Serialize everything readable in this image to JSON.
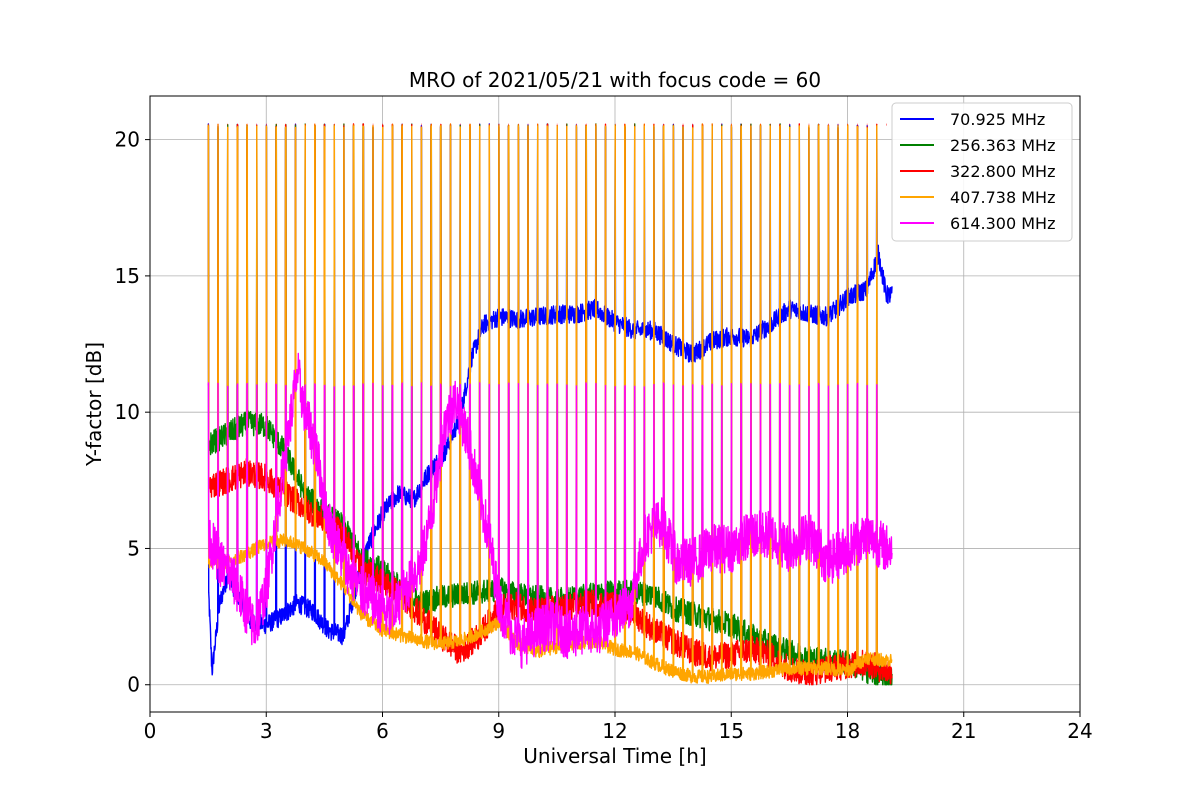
{
  "chart_data": {
    "type": "line",
    "title": "MRO of 2021/05/21 with focus code = 60",
    "xlabel": "Universal Time [h]",
    "ylabel": "Y-factor [dB]",
    "xlim": [
      0,
      24
    ],
    "ylim": [
      -1,
      21.6
    ],
    "xticks": [
      0,
      3,
      6,
      9,
      12,
      15,
      18,
      21,
      24
    ],
    "yticks": [
      0,
      5,
      10,
      15,
      20
    ],
    "grid": true,
    "legend_position": "top-right",
    "legend_labels": [
      " 70.925 MHz",
      "256.363 MHz",
      "322.800 MHz",
      "407.738 MHz",
      "614.300 MHz"
    ],
    "calibration_pulses": {
      "start_h": 1.5,
      "end_h": 19.0,
      "period_h": 0.25,
      "peak_db": 20.5,
      "magenta_peak_db": 11.0
    },
    "series": [
      {
        "name": " 70.925 MHz",
        "color": "#0000ff",
        "x": [
          1.5,
          1.6,
          1.8,
          2.0,
          2.3,
          2.6,
          3.0,
          3.4,
          3.8,
          4.2,
          4.6,
          5.0,
          5.3,
          5.6,
          6.0,
          6.4,
          6.8,
          7.2,
          7.6,
          8.0,
          8.3,
          8.6,
          9.0,
          9.5,
          10.0,
          10.5,
          11.0,
          11.5,
          12.0,
          12.5,
          13.0,
          13.5,
          14.0,
          14.5,
          15.0,
          15.5,
          16.0,
          16.5,
          17.0,
          17.5,
          18.0,
          18.5,
          18.8,
          19.0
        ],
        "y": [
          3.8,
          0.5,
          3.0,
          4.0,
          3.2,
          2.3,
          2.2,
          2.5,
          3.0,
          2.7,
          2.0,
          1.8,
          3.5,
          5.0,
          6.3,
          7.0,
          6.8,
          7.8,
          8.5,
          9.8,
          12.0,
          13.2,
          13.5,
          13.4,
          13.5,
          13.6,
          13.6,
          13.8,
          13.3,
          13.0,
          13.0,
          12.5,
          12.1,
          12.6,
          12.8,
          12.7,
          13.2,
          13.8,
          13.6,
          13.5,
          14.2,
          14.5,
          15.8,
          14.3
        ]
      },
      {
        "name": "256.363 MHz",
        "color": "#008000",
        "x": [
          1.5,
          2.0,
          2.5,
          3.0,
          3.5,
          4.0,
          4.5,
          5.0,
          5.5,
          6.0,
          6.5,
          7.0,
          7.5,
          8.0,
          8.5,
          9.0,
          9.5,
          10.0,
          10.5,
          11.0,
          11.5,
          12.0,
          12.5,
          13.0,
          13.5,
          14.0,
          14.5,
          15.0,
          15.5,
          16.0,
          16.5,
          17.0,
          17.5,
          18.0,
          18.5,
          19.0
        ],
        "y": [
          8.8,
          9.2,
          9.6,
          9.5,
          8.5,
          7.0,
          6.3,
          5.8,
          4.6,
          4.2,
          3.5,
          3.0,
          3.2,
          3.3,
          3.4,
          3.5,
          3.3,
          3.2,
          3.1,
          3.2,
          3.3,
          3.4,
          3.4,
          3.3,
          2.8,
          2.6,
          2.4,
          2.2,
          1.8,
          1.5,
          1.2,
          1.0,
          0.9,
          0.8,
          0.5,
          0.2
        ]
      },
      {
        "name": "322.800 MHz",
        "color": "#ff0000",
        "x": [
          1.5,
          2.0,
          2.5,
          3.0,
          3.5,
          4.0,
          4.5,
          5.0,
          5.5,
          6.0,
          6.5,
          7.0,
          7.5,
          8.0,
          8.5,
          9.0,
          9.5,
          10.0,
          10.5,
          11.0,
          11.5,
          12.0,
          12.5,
          13.0,
          13.5,
          14.0,
          14.5,
          15.0,
          15.5,
          16.0,
          16.5,
          17.0,
          17.5,
          18.0,
          18.5,
          19.0
        ],
        "y": [
          7.3,
          7.5,
          7.8,
          7.6,
          7.0,
          6.5,
          6.0,
          5.5,
          4.2,
          3.8,
          3.3,
          2.5,
          1.8,
          1.2,
          1.8,
          2.8,
          2.9,
          2.7,
          2.8,
          2.9,
          3.0,
          2.9,
          2.6,
          2.0,
          1.6,
          1.2,
          1.0,
          1.1,
          1.3,
          1.1,
          0.6,
          0.4,
          0.6,
          0.7,
          0.8,
          0.5
        ]
      },
      {
        "name": "407.738 MHz",
        "color": "#ffa500",
        "x": [
          1.5,
          2.0,
          2.5,
          3.0,
          3.5,
          4.0,
          4.5,
          5.0,
          5.5,
          6.0,
          6.5,
          7.0,
          7.5,
          8.0,
          8.5,
          9.0,
          9.5,
          10.0,
          10.5,
          11.0,
          11.5,
          12.0,
          12.5,
          13.0,
          13.5,
          14.0,
          14.5,
          15.0,
          15.5,
          16.0,
          16.5,
          17.0,
          17.5,
          18.0,
          18.5,
          19.0
        ],
        "y": [
          4.5,
          4.5,
          4.8,
          5.2,
          5.3,
          5.0,
          4.5,
          3.6,
          2.5,
          2.0,
          1.8,
          1.6,
          1.5,
          1.6,
          1.9,
          2.3,
          1.5,
          1.2,
          1.4,
          1.5,
          1.6,
          1.3,
          1.2,
          0.8,
          0.5,
          0.3,
          0.3,
          0.4,
          0.4,
          0.5,
          0.6,
          0.6,
          0.6,
          0.5,
          1.0,
          0.9
        ]
      },
      {
        "name": "614.300 MHz",
        "color": "#ff00ff",
        "x": [
          1.5,
          1.8,
          2.1,
          2.4,
          2.7,
          3.0,
          3.3,
          3.6,
          3.8,
          4.0,
          4.3,
          4.6,
          5.0,
          5.4,
          5.8,
          6.2,
          6.6,
          7.0,
          7.3,
          7.6,
          7.9,
          8.2,
          8.5,
          8.8,
          9.0,
          9.3,
          9.6,
          10.0,
          10.4,
          10.8,
          11.2,
          11.6,
          12.0,
          12.4,
          12.8,
          13.2,
          13.6,
          14.0,
          14.5,
          15.0,
          15.5,
          16.0,
          16.5,
          17.0,
          17.5,
          18.0,
          18.5,
          19.0
        ],
        "y": [
          5.5,
          4.5,
          4.0,
          3.0,
          2.0,
          3.5,
          6.5,
          9.5,
          11.5,
          10.0,
          8.5,
          6.0,
          4.5,
          3.5,
          3.0,
          2.5,
          3.5,
          4.5,
          6.5,
          9.5,
          10.5,
          9.0,
          7.0,
          5.0,
          3.0,
          2.0,
          1.5,
          2.0,
          2.2,
          1.8,
          2.0,
          2.0,
          2.5,
          3.0,
          5.5,
          6.0,
          4.5,
          4.5,
          5.0,
          5.0,
          5.5,
          5.5,
          5.0,
          5.5,
          4.5,
          5.0,
          5.5,
          5.0
        ]
      }
    ]
  }
}
